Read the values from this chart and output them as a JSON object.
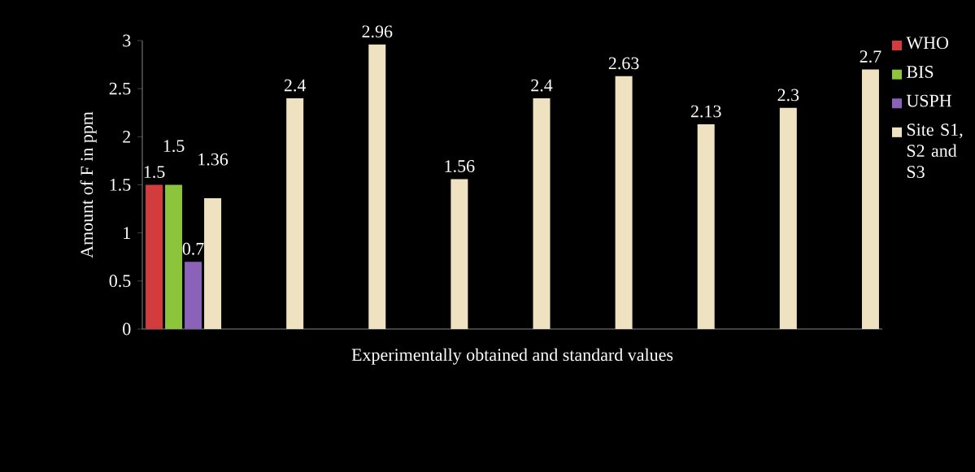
{
  "chart_data": {
    "type": "bar",
    "xlabel": "Experimentally obtained and standard values",
    "ylabel": "Amount of F in ppm",
    "categories": [
      null,
      null,
      null,
      null,
      null,
      null,
      null,
      null,
      null
    ],
    "series": [
      {
        "name": "WHO",
        "color": "#d23c3c",
        "values": [
          1.5,
          null,
          null,
          null,
          null,
          null,
          null,
          null,
          null
        ],
        "value_labels": [
          "1.5",
          null,
          null,
          null,
          null,
          null,
          null,
          null,
          null
        ]
      },
      {
        "name": "BIS",
        "color": "#8cc43c",
        "values": [
          1.5,
          null,
          null,
          null,
          null,
          null,
          null,
          null,
          null
        ],
        "value_labels": [
          "1.5",
          null,
          null,
          null,
          null,
          null,
          null,
          null,
          null
        ]
      },
      {
        "name": "USPH",
        "color": "#8a63b8",
        "values": [
          0.7,
          null,
          null,
          null,
          null,
          null,
          null,
          null,
          null
        ],
        "value_labels": [
          "0.7",
          null,
          null,
          null,
          null,
          null,
          null,
          null,
          null
        ]
      },
      {
        "name": "Site S1, S2 and S3",
        "color": "#eee2c0",
        "values": [
          1.36,
          2.4,
          2.96,
          1.56,
          2.4,
          2.63,
          2.13,
          2.3,
          2.7
        ],
        "value_labels": [
          "1.36",
          "2.4",
          "2.96",
          "1.56",
          "2.4",
          "2.63",
          "2.13",
          "2.3",
          "2.7"
        ]
      }
    ],
    "ylim": [
      0,
      3
    ],
    "yticks": [
      0,
      0.5,
      1,
      1.5,
      2,
      2.5,
      3
    ],
    "legend": "right",
    "grid": false
  }
}
